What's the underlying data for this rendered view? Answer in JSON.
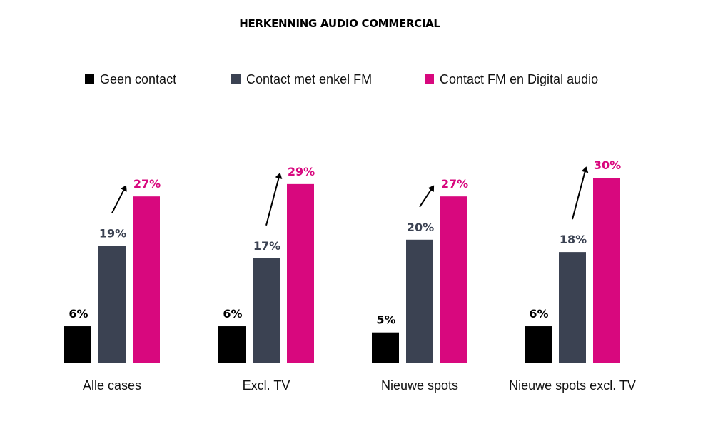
{
  "chart_data": {
    "type": "bar",
    "title": "HERKENNING AUDIO COMMERCIAL",
    "xlabel": "",
    "ylabel": "",
    "ylim": [
      0,
      32
    ],
    "grid": false,
    "legend_position": "top",
    "categories": [
      "Alle cases",
      "Excl. TV",
      "Nieuwe spots",
      "Nieuwe spots excl. TV"
    ],
    "series": [
      {
        "name": "Geen contact",
        "color": "#000000",
        "values": [
          6,
          6,
          5,
          6
        ],
        "labels": [
          "6%",
          "6%",
          "5%",
          "6%"
        ]
      },
      {
        "name": "Contact met enkel FM",
        "color": "#3b4252",
        "values": [
          19,
          17,
          20,
          18
        ],
        "labels": [
          "19%",
          "17%",
          "20%",
          "18%"
        ]
      },
      {
        "name": "Contact FM en Digital audio",
        "color": "#d8087e",
        "values": [
          27,
          29,
          27,
          30
        ],
        "labels": [
          "27%",
          "29%",
          "27%",
          "30%"
        ]
      }
    ],
    "annotations": "arrow from FM-only bar to FM + Digital audio bar in each group"
  }
}
